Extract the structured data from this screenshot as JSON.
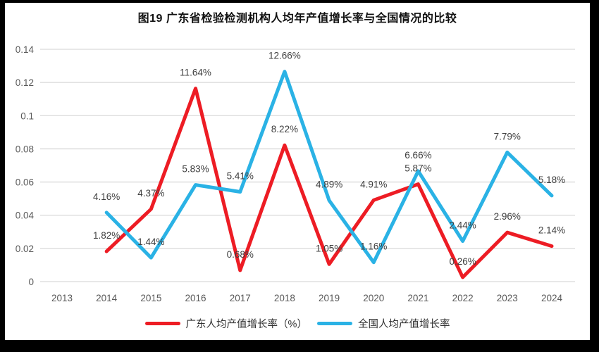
{
  "chart_data": {
    "type": "line",
    "title": "图19  广东省检验检测机构人均年产值增长率与全国情况的比较",
    "categories": [
      "2013",
      "2014",
      "2015",
      "2016",
      "2017",
      "2018",
      "2019",
      "2020",
      "2021",
      "2022",
      "2023",
      "2024"
    ],
    "series": [
      {
        "name": "广东人均产值增长率（%）",
        "color": "#ed1c24",
        "values": [
          null,
          0.0182,
          0.0437,
          0.1164,
          0.0068,
          0.0822,
          0.0105,
          0.0491,
          0.0587,
          0.0026,
          0.0296,
          0.0214
        ],
        "labels": [
          null,
          "1.82%",
          "4.37%",
          "11.64%",
          "0.68%",
          "8.22%",
          "1.05%",
          "4.91%",
          "5.87%",
          "0.26%",
          "2.96%",
          "2.14%"
        ]
      },
      {
        "name": "全国人均产值增长率",
        "color": "#2ab2e5",
        "values": [
          null,
          0.0416,
          0.0144,
          0.0583,
          0.0541,
          0.1266,
          0.0489,
          0.0116,
          0.0666,
          0.0244,
          0.0779,
          0.0518
        ],
        "labels": [
          null,
          "4.16%",
          "1.44%",
          "5.83%",
          "5.41%",
          "12.66%",
          "4.89%",
          "1.16%",
          "6.66%",
          "2.44%",
          "7.79%",
          "5.18%"
        ]
      }
    ],
    "y_ticks": [
      "0",
      "0.02",
      "0.04",
      "0.06",
      "0.08",
      "0.1",
      "0.12",
      "0.14"
    ],
    "ylim": [
      0,
      0.14
    ],
    "xlabel": "",
    "ylabel": "",
    "grid": true,
    "legend_position": "bottom",
    "gridline_color": "#d9d9d9",
    "axis_text_color": "#595959",
    "data_label_color": "#3f3f3f"
  }
}
